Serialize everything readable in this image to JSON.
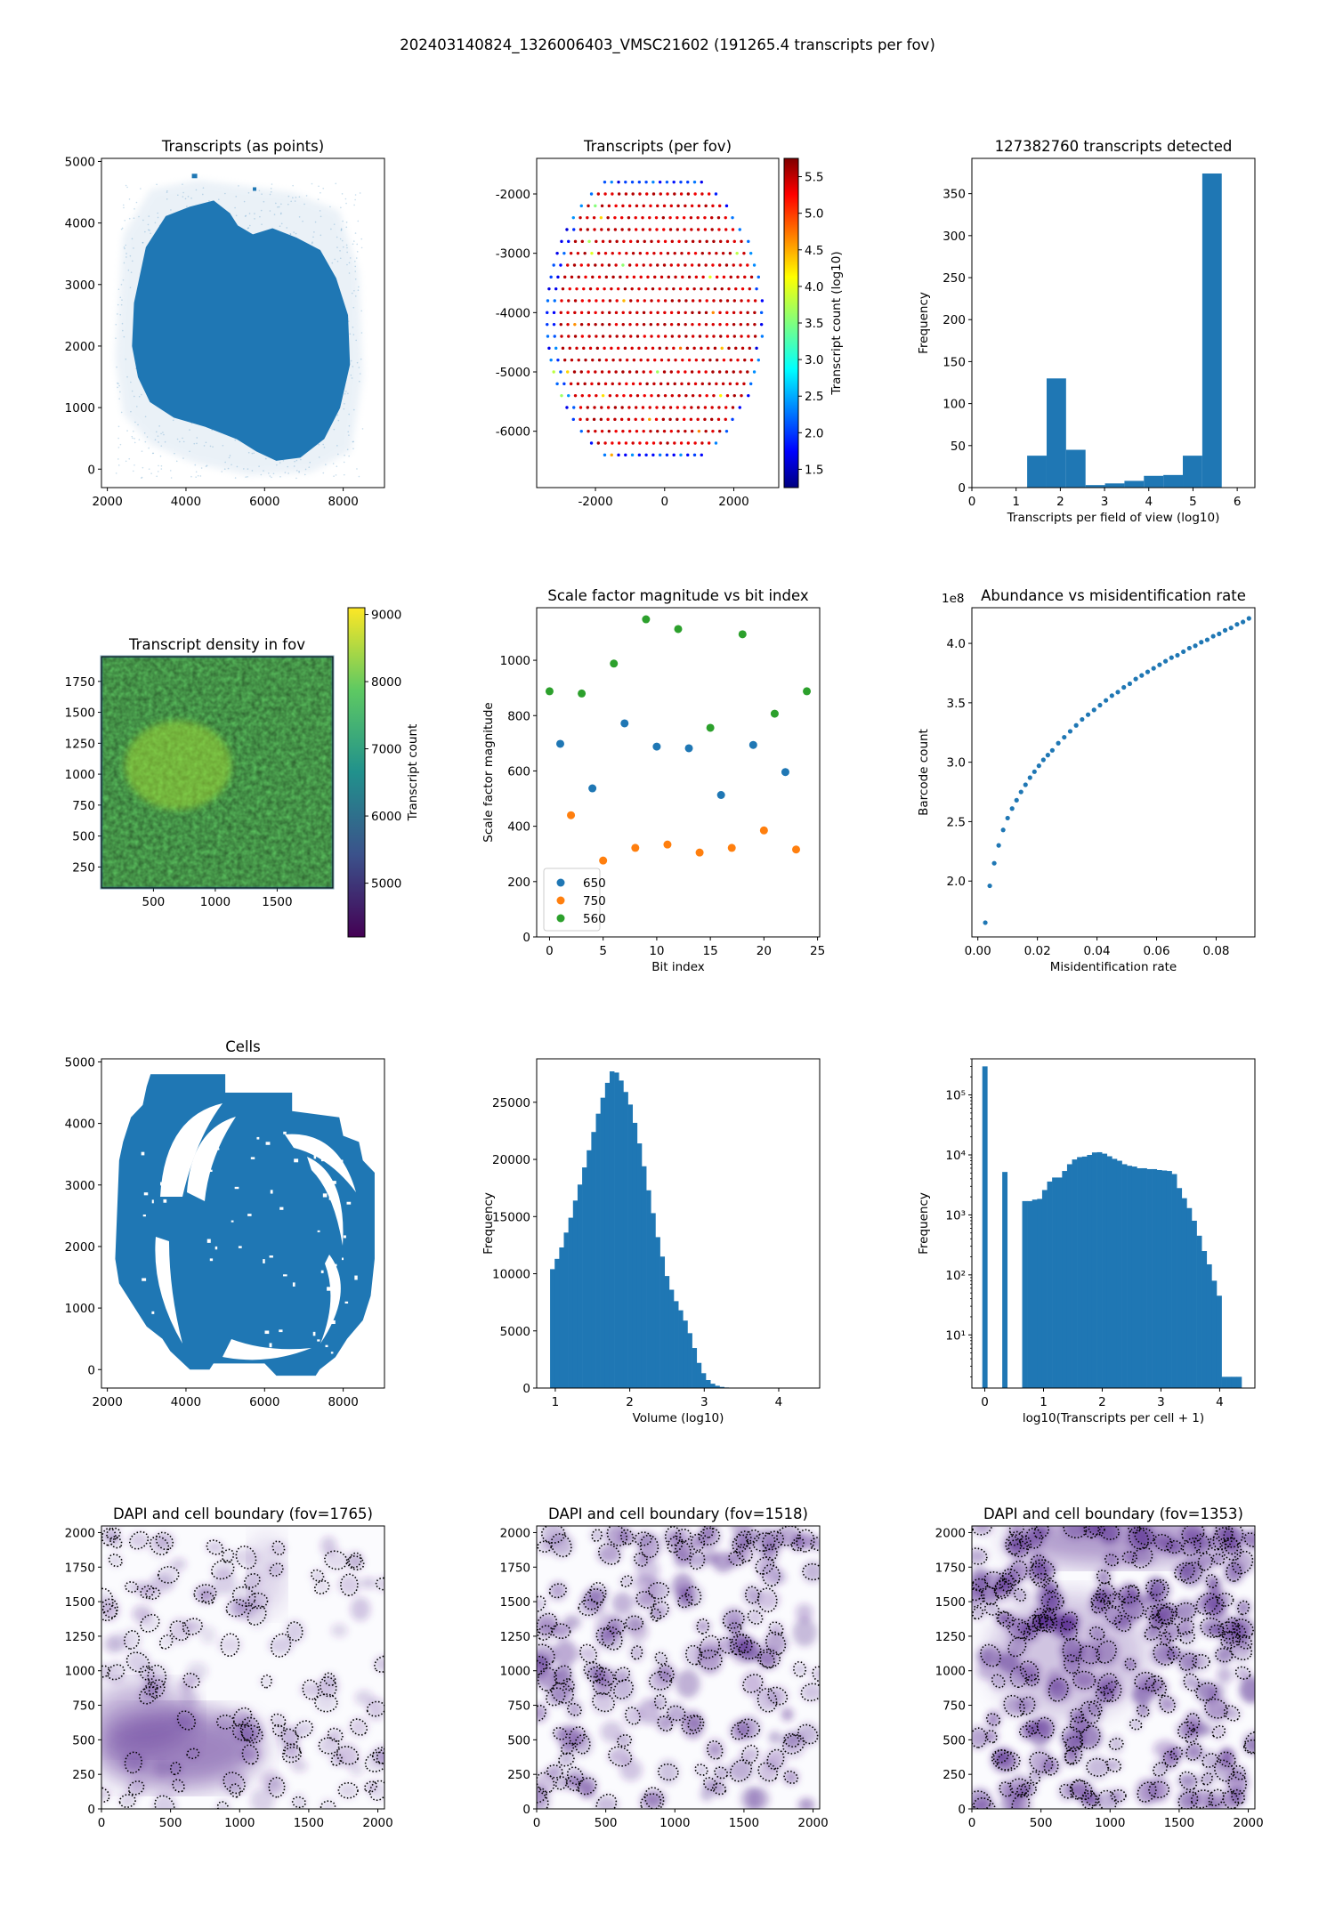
{
  "figure": {
    "suptitle": "202403140824_1326006403_VMSC21602 (191265.4 transcripts per fov)"
  },
  "colors": {
    "blue": "#1f77b4",
    "orange": "#ff7f0e",
    "green": "#2ca02c",
    "dapi": "#54278f"
  },
  "chart_data": [
    {
      "id": "transcripts-points",
      "type": "scatter",
      "title": "Transcripts (as points)",
      "xlabel": "",
      "ylabel": "",
      "xlim": [
        1850,
        9050
      ],
      "ylim": [
        -300,
        5050
      ],
      "xticks": [
        2000,
        4000,
        6000,
        8000
      ],
      "yticks": [
        0,
        1000,
        2000,
        3000,
        4000,
        5000
      ],
      "grid": false,
      "note_values": "Dense tissue section; outline approximated",
      "outline": [
        [
          2650,
          2000
        ],
        [
          2700,
          2700
        ],
        [
          3000,
          3600
        ],
        [
          3500,
          4100
        ],
        [
          4100,
          4250
        ],
        [
          4700,
          4350
        ],
        [
          5100,
          4150
        ],
        [
          5300,
          3950
        ],
        [
          5700,
          3800
        ],
        [
          6200,
          3900
        ],
        [
          6800,
          3750
        ],
        [
          7400,
          3550
        ],
        [
          7800,
          3100
        ],
        [
          8100,
          2500
        ],
        [
          8150,
          1700
        ],
        [
          7900,
          1000
        ],
        [
          7500,
          500
        ],
        [
          6900,
          200
        ],
        [
          6300,
          150
        ],
        [
          5800,
          300
        ],
        [
          5300,
          500
        ],
        [
          4500,
          700
        ],
        [
          3700,
          850
        ],
        [
          3100,
          1100
        ],
        [
          2800,
          1500
        ]
      ],
      "halo": [
        [
          2200,
          1800
        ],
        [
          2400,
          3800
        ],
        [
          3100,
          4550
        ],
        [
          4300,
          4700
        ],
        [
          5500,
          4600
        ],
        [
          6700,
          4500
        ],
        [
          7900,
          4200
        ],
        [
          8400,
          3200
        ],
        [
          8500,
          1500
        ],
        [
          8200,
          300
        ],
        [
          7200,
          -50
        ],
        [
          5600,
          -100
        ],
        [
          4200,
          100
        ],
        [
          3100,
          400
        ],
        [
          2400,
          900
        ]
      ]
    },
    {
      "id": "transcripts-per-fov",
      "type": "scatter",
      "title": "Transcripts (per fov)",
      "colorbar_label": "Transcript count (log10)",
      "xlim": [
        -3700,
        3300
      ],
      "ylim": [
        -6950,
        -1400
      ],
      "xticks": [
        -2000,
        0,
        2000
      ],
      "yticks": [
        -2000,
        -3000,
        -4000,
        -5000,
        -6000
      ],
      "colorbar_range": [
        1.25,
        5.75
      ],
      "colorbar_ticks": [
        1.5,
        2.0,
        2.5,
        3.0,
        3.5,
        4.0,
        4.5,
        5.0,
        5.5
      ],
      "colormap": "jet",
      "grid_rows_y": [
        -1800,
        -2000,
        -2200,
        -2400,
        -2600,
        -2800,
        -3000,
        -3200,
        -3400,
        -3600,
        -3800,
        -4000,
        -4200,
        -4400,
        -4600,
        -4800,
        -5000,
        -5200,
        -5400,
        -5600,
        -5800,
        -6000,
        -6200,
        -6400
      ],
      "fov_spacing_x": 200,
      "x_extent": [
        -3300,
        2800
      ]
    },
    {
      "id": "transcripts-histogram",
      "type": "bar",
      "title": "127382760 transcripts detected",
      "xlabel": "Transcripts per field of view (log10)",
      "ylabel": "Frequency",
      "xlim": [
        0,
        6.4
      ],
      "ylim": [
        0,
        392
      ],
      "xticks": [
        0,
        1,
        2,
        3,
        4,
        5,
        6
      ],
      "yticks": [
        0,
        50,
        100,
        150,
        200,
        250,
        300,
        350
      ],
      "bin_edges": [
        1.25,
        1.69,
        2.13,
        2.57,
        3.01,
        3.45,
        3.89,
        4.33,
        4.77,
        5.21,
        5.65
      ],
      "values": [
        38,
        130,
        45,
        3,
        5,
        8,
        14,
        15,
        38,
        374
      ]
    },
    {
      "id": "transcript-density",
      "type": "heatmap",
      "title": "Transcript density in fov",
      "colorbar_label": "Transcript count",
      "xlim": [
        80,
        1950
      ],
      "ylim": [
        80,
        1950
      ],
      "xticks": [
        500,
        1000,
        1500
      ],
      "yticks": [
        250,
        500,
        750,
        1000,
        1250,
        1500,
        1750
      ],
      "colorbar_range": [
        4200,
        9100
      ],
      "colorbar_ticks": [
        5000,
        6000,
        7000,
        8000,
        9000
      ],
      "colormap": "viridis"
    },
    {
      "id": "scale-factor",
      "type": "scatter",
      "title": "Scale factor magnitude vs bit index",
      "xlabel": "Bit index",
      "ylabel": "Scale factor magnitude",
      "xlim": [
        -1.2,
        25.2
      ],
      "ylim": [
        0,
        1190
      ],
      "xticks": [
        0,
        5,
        10,
        15,
        20,
        25
      ],
      "yticks": [
        0,
        200,
        400,
        600,
        800,
        1000
      ],
      "legend": "lower-left",
      "series": [
        {
          "name": "650",
          "color": "#1f77b4",
          "x": [
            1,
            4,
            7,
            10,
            13,
            16,
            19,
            22
          ],
          "values": [
            698,
            537,
            772,
            688,
            682,
            513,
            694,
            596
          ]
        },
        {
          "name": "750",
          "color": "#ff7f0e",
          "x": [
            2,
            5,
            8,
            11,
            14,
            17,
            20,
            23
          ],
          "values": [
            440,
            276,
            322,
            334,
            305,
            322,
            385,
            316
          ]
        },
        {
          "name": "560",
          "color": "#2ca02c",
          "x": [
            0,
            3,
            6,
            9,
            12,
            15,
            18,
            21,
            24
          ],
          "values": [
            888,
            880,
            988,
            1148,
            1113,
            756,
            1094,
            807,
            888
          ]
        }
      ]
    },
    {
      "id": "abundance-vs-misid",
      "type": "scatter",
      "title": "Abundance vs misidentification rate",
      "xlabel": "Misidentification rate",
      "ylabel": "Barcode count",
      "offset_label": "1e8",
      "xlim": [
        -0.002,
        0.093
      ],
      "ylim": [
        1.53,
        4.3
      ],
      "xticks": [
        0.0,
        0.02,
        0.04,
        0.06,
        0.08
      ],
      "yticks": [
        2.0,
        2.5,
        3.0,
        3.5,
        4.0
      ],
      "series": [
        {
          "name": "",
          "color": "#1f77b4",
          "x": [
            0.0025,
            0.004,
            0.0055,
            0.007,
            0.0085,
            0.01,
            0.0115,
            0.013,
            0.0145,
            0.016,
            0.0175,
            0.019,
            0.0205,
            0.022,
            0.0235,
            0.025,
            0.027,
            0.029,
            0.031,
            0.033,
            0.035,
            0.037,
            0.039,
            0.041,
            0.043,
            0.045,
            0.047,
            0.049,
            0.051,
            0.053,
            0.055,
            0.057,
            0.059,
            0.061,
            0.063,
            0.065,
            0.067,
            0.069,
            0.071,
            0.073,
            0.075,
            0.077,
            0.079,
            0.081,
            0.083,
            0.085,
            0.087,
            0.089,
            0.091
          ],
          "values": [
            1.65,
            1.96,
            2.15,
            2.3,
            2.43,
            2.53,
            2.61,
            2.68,
            2.75,
            2.81,
            2.87,
            2.92,
            2.97,
            3.02,
            3.06,
            3.1,
            3.16,
            3.21,
            3.26,
            3.31,
            3.36,
            3.4,
            3.44,
            3.48,
            3.52,
            3.56,
            3.59,
            3.63,
            3.66,
            3.7,
            3.73,
            3.76,
            3.79,
            3.82,
            3.85,
            3.88,
            3.9,
            3.93,
            3.96,
            3.98,
            4.01,
            4.03,
            4.06,
            4.08,
            4.11,
            4.13,
            4.16,
            4.18,
            4.21
          ]
        }
      ]
    },
    {
      "id": "cells",
      "type": "scatter",
      "title": "Cells",
      "xlim": [
        1850,
        9050
      ],
      "ylim": [
        -300,
        5050
      ],
      "xticks": [
        2000,
        4000,
        6000,
        8000
      ],
      "yticks": [
        0,
        1000,
        2000,
        3000,
        4000,
        5000
      ],
      "outline": [
        [
          3100,
          4800
        ],
        [
          5000,
          4800
        ],
        [
          5000,
          4500
        ],
        [
          6700,
          4500
        ],
        [
          6700,
          4200
        ],
        [
          7900,
          4100
        ],
        [
          8000,
          3800
        ],
        [
          8400,
          3700
        ],
        [
          8500,
          3400
        ],
        [
          8800,
          3200
        ],
        [
          8800,
          1800
        ],
        [
          8700,
          1200
        ],
        [
          8500,
          800
        ],
        [
          8100,
          500
        ],
        [
          7800,
          200
        ],
        [
          7400,
          0
        ],
        [
          7300,
          -100
        ],
        [
          6300,
          -100
        ],
        [
          6000,
          100
        ],
        [
          4700,
          100
        ],
        [
          4600,
          0
        ],
        [
          4100,
          0
        ],
        [
          3600,
          300
        ],
        [
          3400,
          500
        ],
        [
          3000,
          700
        ],
        [
          2700,
          1000
        ],
        [
          2300,
          1400
        ],
        [
          2200,
          1800
        ],
        [
          2300,
          3400
        ],
        [
          2400,
          3700
        ],
        [
          2600,
          4100
        ],
        [
          2900,
          4300
        ],
        [
          3000,
          4600
        ]
      ]
    },
    {
      "id": "volume-hist",
      "type": "bar",
      "title": "",
      "xlabel": "Volume (log10)",
      "ylabel": "Frequency",
      "xlim": [
        0.75,
        4.55
      ],
      "ylim": [
        0,
        28800
      ],
      "xticks": [
        1,
        2,
        3,
        4
      ],
      "yticks": [
        0,
        5000,
        10000,
        15000,
        20000,
        25000
      ],
      "bin_start": 0.93,
      "bin_width": 0.0615,
      "values": [
        10400,
        11300,
        12300,
        13600,
        14900,
        16400,
        17800,
        19300,
        20800,
        22400,
        24000,
        25400,
        26700,
        27700,
        27600,
        26900,
        25900,
        24800,
        23200,
        21400,
        19400,
        17300,
        15300,
        13200,
        11500,
        9800,
        8600,
        7600,
        6800,
        5900,
        4800,
        3500,
        2200,
        1300,
        700,
        380,
        200,
        100,
        50,
        25,
        12,
        6,
        3,
        1,
        0,
        0,
        0,
        0,
        0,
        0,
        0,
        1
      ]
    },
    {
      "id": "transcripts-per-cell",
      "type": "bar",
      "title": "",
      "xlabel": "log10(Transcripts per cell + 1)",
      "ylabel": "Frequency",
      "log_y": true,
      "xlim": [
        -0.22,
        4.6
      ],
      "ylim": [
        1.3,
        400000
      ],
      "xticks": [
        0,
        1,
        2,
        3,
        4
      ],
      "yticks": [
        10,
        100,
        1000,
        10000,
        100000
      ],
      "ytick_labels": [
        "10¹",
        "10²",
        "10³",
        "10⁴",
        "10⁵"
      ],
      "bin_start": -0.0424,
      "bin_width": 0.0849,
      "values": [
        300000,
        0,
        0,
        0,
        5200,
        0,
        0,
        0,
        1700,
        1700,
        1800,
        1850,
        2600,
        3600,
        4200,
        4200,
        5400,
        7000,
        8400,
        9200,
        9400,
        10000,
        11000,
        11100,
        10500,
        9500,
        8600,
        8000,
        7000,
        6600,
        6400,
        6000,
        6000,
        5800,
        5800,
        5600,
        5500,
        5400,
        4800,
        2800,
        1900,
        1300,
        800,
        450,
        250,
        150,
        80,
        45,
        2,
        2,
        2,
        2
      ]
    },
    {
      "id": "dapi-1765",
      "type": "heatmap",
      "title": "DAPI and cell boundary (fov=1765)",
      "xlim": [
        0,
        2048
      ],
      "ylim": [
        0,
        2048
      ],
      "xticks": [
        0,
        500,
        1000,
        1500,
        2000
      ],
      "yticks": [
        0,
        250,
        500,
        750,
        1000,
        1250,
        1500,
        1750,
        2000
      ]
    },
    {
      "id": "dapi-1518",
      "type": "heatmap",
      "title": "DAPI and cell boundary (fov=1518)",
      "xlim": [
        0,
        2048
      ],
      "ylim": [
        0,
        2048
      ],
      "xticks": [
        0,
        500,
        1000,
        1500,
        2000
      ],
      "yticks": [
        0,
        250,
        500,
        750,
        1000,
        1250,
        1500,
        1750,
        2000
      ]
    },
    {
      "id": "dapi-1353",
      "type": "heatmap",
      "title": "DAPI and cell boundary (fov=1353)",
      "xlim": [
        0,
        2048
      ],
      "ylim": [
        0,
        2048
      ],
      "xticks": [
        0,
        500,
        1000,
        1500,
        2000
      ],
      "yticks": [
        0,
        250,
        500,
        750,
        1000,
        1250,
        1500,
        1750,
        2000
      ]
    }
  ]
}
